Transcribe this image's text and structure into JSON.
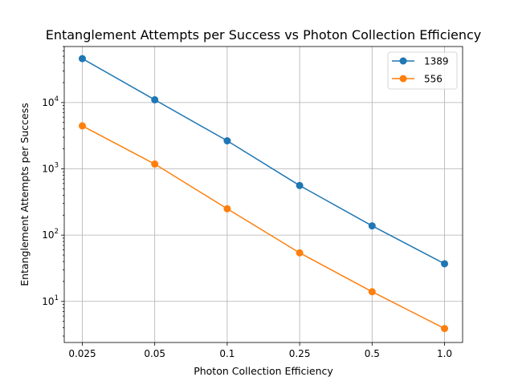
{
  "chart_data": {
    "type": "line",
    "title": "Entanglement Attempts per Success vs Photon Collection Efficiency",
    "xlabel": "Photon Collection Efficiency",
    "ylabel": "Entanglement Attempts per Success",
    "x_scale": "categorical",
    "y_scale": "log",
    "categories": [
      "0.025",
      "0.05",
      "0.1",
      "0.25",
      "0.5",
      "1.0"
    ],
    "ylim": [
      2.4,
      70000
    ],
    "y_ticks": [
      {
        "value": 10,
        "base": "10",
        "exp": "1"
      },
      {
        "value": 100,
        "base": "10",
        "exp": "2"
      },
      {
        "value": 1000,
        "base": "10",
        "exp": "3"
      },
      {
        "value": 10000,
        "base": "10",
        "exp": "4"
      }
    ],
    "grid": true,
    "legend_position": "top-right",
    "series": [
      {
        "name": "1389",
        "color": "#1f77b4",
        "values": [
          46000,
          11000,
          2650,
          560,
          138,
          37
        ]
      },
      {
        "name": "556",
        "color": "#ff7f0e",
        "values": [
          4450,
          1180,
          250,
          54,
          14,
          3.9
        ]
      }
    ]
  }
}
